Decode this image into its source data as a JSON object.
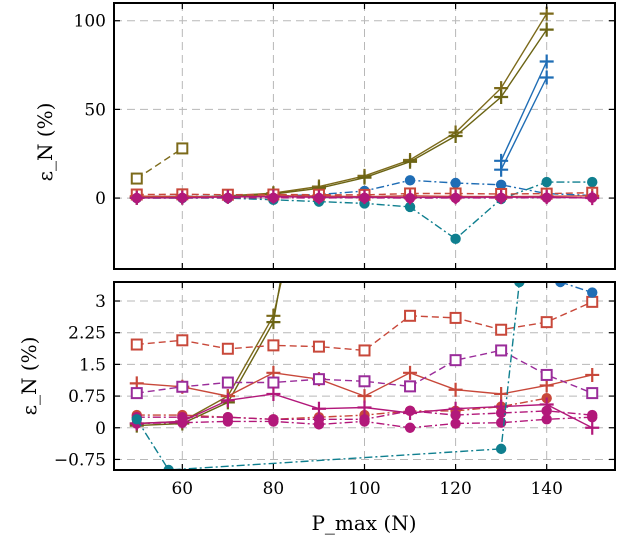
{
  "colors": {
    "olive": "#7c6a1a",
    "olive_dark": "#6b6414",
    "blue": "#1f6db5",
    "teal": "#0f7f8f",
    "red": "#c8483a",
    "magenta": "#b2187a",
    "purple": "#9a2c9a",
    "grid": "#b8b8b8"
  },
  "chart_data": [
    {
      "type": "line",
      "ylabel": "ε_N (%)",
      "xlim": [
        45,
        155
      ],
      "ylim": [
        -40,
        110
      ],
      "yticks": [
        0,
        50,
        100
      ],
      "grid": true,
      "series": [
        {
          "color": "#7c6a1a",
          "marker": "square",
          "linestyle": "dashed",
          "x": [
            50,
            60
          ],
          "values": [
            11,
            28
          ]
        },
        {
          "color": "#7c6a1a",
          "marker": "plus",
          "linestyle": "solid",
          "x": [
            50,
            60,
            70,
            80,
            90,
            100,
            110,
            120,
            130,
            140,
            150
          ],
          "values": [
            0.3,
            0.5,
            1.2,
            2.8,
            6.5,
            12.5,
            21.5,
            37,
            62,
            104,
            null
          ]
        },
        {
          "color": "#6b6414",
          "marker": "plus",
          "linestyle": "solid",
          "x": [
            50,
            60,
            70,
            80,
            90,
            100,
            110,
            120,
            130,
            140
          ],
          "values": [
            0.2,
            0.4,
            1.0,
            2.3,
            5.5,
            11.5,
            20.5,
            35,
            57,
            95
          ]
        },
        {
          "color": "#1f6db5",
          "marker": "plus",
          "linestyle": "solid",
          "x": [
            130,
            140
          ],
          "values": [
            21,
            77
          ]
        },
        {
          "color": "#1f6db5",
          "marker": "plus",
          "linestyle": "solid",
          "x": [
            130,
            140
          ],
          "values": [
            16,
            68
          ]
        },
        {
          "color": "#1f6db5",
          "marker": "circle",
          "linestyle": "dashdot",
          "x": [
            50,
            60,
            70,
            80,
            90,
            100,
            110,
            120,
            130,
            140,
            150
          ],
          "values": [
            1,
            1,
            1,
            1,
            2,
            4,
            10,
            8.5,
            7.5,
            2.5,
            1.5
          ]
        },
        {
          "color": "#0f7f8f",
          "marker": "circle",
          "linestyle": "dashdot",
          "x": [
            50,
            60,
            70,
            80,
            90,
            100,
            110,
            120,
            130,
            140,
            150
          ],
          "values": [
            0,
            0,
            0,
            -1,
            -2,
            -3,
            -5,
            -23,
            -0.5,
            9,
            9
          ]
        },
        {
          "color": "#c8483a",
          "marker": "square",
          "linestyle": "dashed",
          "x": [
            50,
            60,
            70,
            80,
            90,
            100,
            110,
            120,
            130,
            140,
            150
          ],
          "values": [
            2,
            2.1,
            1.9,
            2,
            1.9,
            1.8,
            2.6,
            2.6,
            2.3,
            2.5,
            3
          ]
        },
        {
          "color": "#c8483a",
          "marker": "plus",
          "linestyle": "solid",
          "x": [
            50,
            60,
            70,
            80,
            90,
            100,
            110,
            120,
            130,
            140,
            150
          ],
          "values": [
            1.05,
            0.95,
            0.75,
            1.3,
            1.15,
            0.75,
            1.3,
            0.9,
            0.8,
            1,
            1.25
          ]
        },
        {
          "color": "#b2187a",
          "marker": "circle",
          "linestyle": "dashdot",
          "x": [
            50,
            60,
            70,
            80,
            90,
            100,
            110,
            120,
            130,
            140,
            150
          ],
          "values": [
            0.1,
            0.12,
            0.15,
            0.15,
            0.1,
            0.15,
            0,
            0.1,
            0.12,
            0.2,
            0.25
          ]
        },
        {
          "color": "#b2187a",
          "marker": "plus",
          "linestyle": "solid",
          "x": [
            50,
            60,
            70,
            80,
            90,
            100,
            110,
            120,
            130,
            140,
            150
          ],
          "values": [
            0.1,
            0.15,
            0.65,
            0.8,
            0.45,
            0.5,
            0.35,
            0.45,
            0.5,
            0.55,
            0
          ]
        }
      ]
    },
    {
      "type": "line",
      "xlabel": "P_max (N)",
      "ylabel": "ε_N (%)",
      "xlim": [
        45,
        155
      ],
      "ylim": [
        -1.0,
        3.45
      ],
      "xticks": [
        60,
        80,
        100,
        120,
        140
      ],
      "yticks": [
        3,
        2.25,
        1.5,
        0.75,
        0,
        -0.75
      ],
      "ytick_labels": [
        "3",
        "2.25",
        "1.5",
        "0.75",
        "0",
        "−0.75"
      ],
      "grid": true,
      "series": [
        {
          "color": "#7c6a1a",
          "marker": "plus",
          "linestyle": "solid",
          "x": [
            50,
            60,
            70,
            80,
            85
          ],
          "values": [
            0.1,
            0.15,
            0.75,
            2.65,
            5.0
          ]
        },
        {
          "color": "#6b6414",
          "marker": "plus",
          "linestyle": "solid",
          "x": [
            50,
            60,
            70,
            80,
            84
          ],
          "values": [
            0.05,
            0.1,
            0.6,
            2.5,
            5.0
          ]
        },
        {
          "color": "#c8483a",
          "marker": "square",
          "linestyle": "dashed",
          "x": [
            50,
            60,
            70,
            80,
            90,
            100,
            110,
            120,
            130,
            140,
            150
          ],
          "values": [
            1.97,
            2.07,
            1.87,
            1.95,
            1.92,
            1.83,
            2.65,
            2.6,
            2.32,
            2.5,
            2.98
          ]
        },
        {
          "color": "#c8483a",
          "marker": "plus",
          "linestyle": "solid",
          "x": [
            50,
            60,
            70,
            80,
            90,
            100,
            110,
            120,
            130,
            140,
            150
          ],
          "values": [
            1.05,
            0.97,
            0.75,
            1.3,
            1.15,
            0.75,
            1.3,
            0.9,
            0.8,
            1.0,
            1.25
          ]
        },
        {
          "color": "#c8483a",
          "marker": "circle",
          "linestyle": "dashdot",
          "x": [
            50,
            60,
            70,
            80,
            90,
            100,
            110,
            120,
            130,
            140
          ],
          "values": [
            0.3,
            0.3,
            0.25,
            0.2,
            0.25,
            0.3,
            0.4,
            0.4,
            0.5,
            0.7
          ]
        },
        {
          "color": "#9a2c9a",
          "marker": "square",
          "linestyle": "dashed",
          "x": [
            50,
            60,
            70,
            80,
            90,
            100,
            110,
            120,
            130,
            140,
            150
          ],
          "values": [
            0.82,
            0.97,
            1.07,
            1.07,
            1.15,
            1.1,
            0.98,
            1.6,
            1.83,
            1.25,
            0.82
          ]
        },
        {
          "color": "#b2187a",
          "marker": "circle",
          "linestyle": "dashdot",
          "x": [
            50,
            60,
            70,
            80,
            90,
            100,
            110,
            120,
            130,
            140,
            150
          ],
          "values": [
            0.1,
            0.12,
            0.15,
            0.15,
            0.08,
            0.15,
            0.0,
            0.1,
            0.12,
            0.2,
            0.25
          ]
        },
        {
          "color": "#b2187a",
          "marker": "plus",
          "linestyle": "solid",
          "x": [
            50,
            60,
            70,
            80,
            90,
            100,
            110,
            120,
            130,
            140,
            150
          ],
          "values": [
            0.1,
            0.15,
            0.65,
            0.8,
            0.45,
            0.48,
            0.35,
            0.45,
            0.5,
            0.55,
            0.0
          ]
        },
        {
          "color": "#b2187a",
          "marker": "circle",
          "linestyle": "dashdot",
          "x": [
            50,
            60,
            70,
            80,
            90,
            100,
            110,
            120,
            130,
            140,
            150
          ],
          "values": [
            0.25,
            0.25,
            0.25,
            0.2,
            0.2,
            0.2,
            0.4,
            0.3,
            0.35,
            0.4,
            0.3
          ]
        },
        {
          "color": "#0f7f8f",
          "marker": "circle",
          "linestyle": "dashdot",
          "x": [
            50,
            57,
            130,
            134
          ],
          "values": [
            0.2,
            -1.0,
            -0.5,
            3.45
          ]
        },
        {
          "color": "#1f6db5",
          "marker": "circle",
          "linestyle": "dashdot",
          "x": [
            143,
            150
          ],
          "values": [
            3.45,
            3.2
          ]
        }
      ]
    }
  ]
}
